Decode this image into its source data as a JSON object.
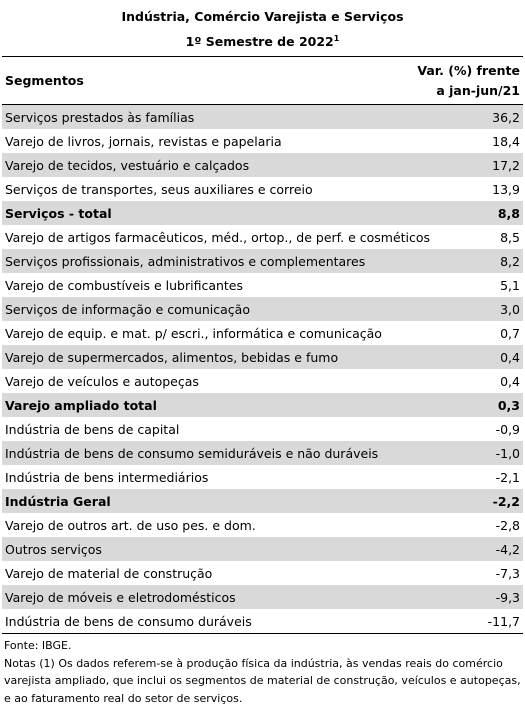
{
  "title": {
    "line1": "Indústria, Comércio Varejista e Serviços",
    "line2": "1º Semestre de 2022",
    "note_mark": "1"
  },
  "table": {
    "header": {
      "segment": "Segmentos",
      "value": [
        "Var. (%) frente",
        "a jan-jun/21"
      ]
    },
    "rows": [
      {
        "label": "Serviços prestados às famílias",
        "value": "36,2",
        "bold": false
      },
      {
        "label": "Varejo de livros, jornais, revistas e papelaria",
        "value": "18,4",
        "bold": false
      },
      {
        "label": "Varejo de tecidos, vestuário e calçados",
        "value": "17,2",
        "bold": false
      },
      {
        "label": "Serviços de transportes, seus auxiliares e correio",
        "value": "13,9",
        "bold": false
      },
      {
        "label": "Serviços - total",
        "value": "8,8",
        "bold": true
      },
      {
        "label": "Varejo de artigos farmacêuticos, méd., ortop., de perf. e cosméticos",
        "value": "8,5",
        "bold": false
      },
      {
        "label": "Serviços profissionais, administrativos e complementares",
        "value": "8,2",
        "bold": false
      },
      {
        "label": "Varejo de combustíveis e lubrificantes",
        "value": "5,1",
        "bold": false
      },
      {
        "label": "Serviços de informação e comunicação",
        "value": "3,0",
        "bold": false
      },
      {
        "label": "Varejo de equip. e mat. p/ escri., informática e comunicação",
        "value": "0,7",
        "bold": false
      },
      {
        "label": "Varejo de supermercados, alimentos, bebidas e fumo",
        "value": "0,4",
        "bold": false
      },
      {
        "label": "Varejo de veículos e autopeças",
        "value": "0,4",
        "bold": false
      },
      {
        "label": "Varejo ampliado total",
        "value": "0,3",
        "bold": true
      },
      {
        "label": "Indústria de bens de capital",
        "value": "-0,9",
        "bold": false
      },
      {
        "label": "Indústria de bens de consumo semiduráveis e não duráveis",
        "value": "-1,0",
        "bold": false
      },
      {
        "label": "Indústria de bens intermediários",
        "value": "-2,1",
        "bold": false
      },
      {
        "label": "Indústria Geral",
        "value": "-2,2",
        "bold": true
      },
      {
        "label": "Varejo de outros art. de uso pes. e dom.",
        "value": "-2,8",
        "bold": false
      },
      {
        "label": "Outros serviços",
        "value": "-4,2",
        "bold": false
      },
      {
        "label": "Varejo de material de construção",
        "value": "-7,3",
        "bold": false
      },
      {
        "label": "Varejo de móveis e eletrodomésticos",
        "value": "-9,3",
        "bold": false
      },
      {
        "label": "Indústria de bens de consumo duráveis",
        "value": "-11,7",
        "bold": false
      }
    ]
  },
  "footer": {
    "source": "Fonte: IBGE.",
    "notes": "Notas (1) Os dados referem-se à produção física da indústria, às vendas reais do comércio varejista ampliado, que inclui os segmentos de material de construção, veículos e autopeças, e ao faturamento real do setor de serviços."
  }
}
